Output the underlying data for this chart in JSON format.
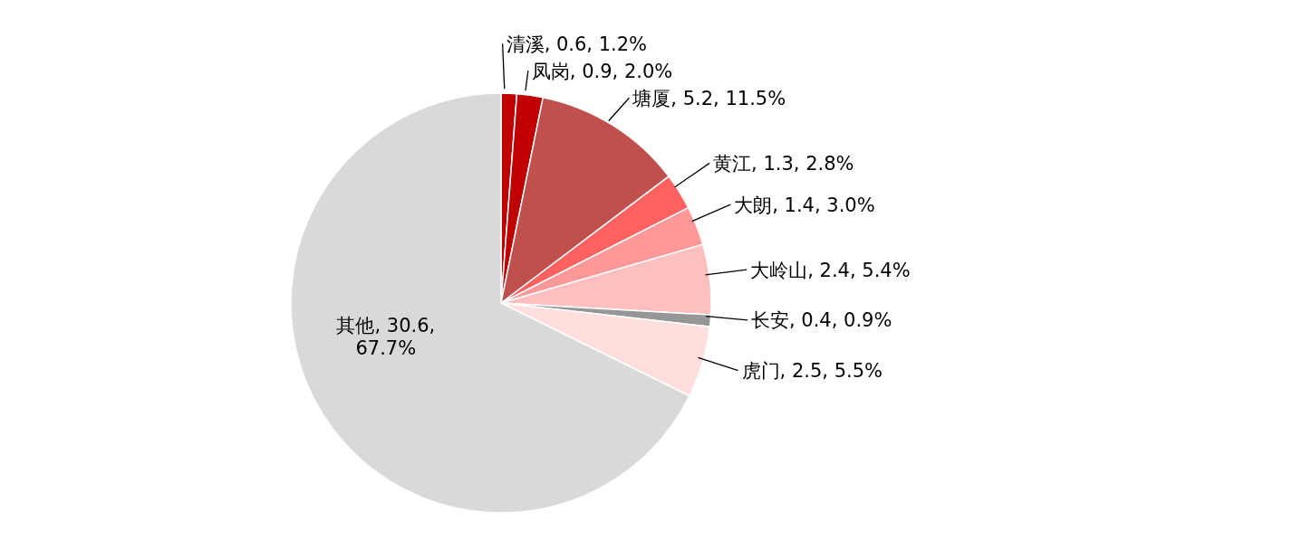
{
  "chart_data": {
    "type": "pie",
    "categories": [
      "清溪",
      "凤岗",
      "塘厦",
      "黄江",
      "大朗",
      "大岭山",
      "长安",
      "虎门",
      "其他"
    ],
    "values": [
      1.2,
      2.0,
      11.5,
      2.8,
      3.0,
      5.4,
      0.9,
      5.5,
      67.7
    ],
    "colors": [
      "#c00000",
      "#c00000",
      "#c0504d",
      "#ff6161",
      "#ff9999",
      "#ffbfbf",
      "#969696",
      "#ffdede",
      "#d9d9d9"
    ],
    "value_labels": [
      "0.6, 1.2%",
      "0.9, 2.0%",
      "5.2, 11.5%",
      "1.3, 2.8%",
      "1.4, 3.0%",
      "2.4, 5.4%",
      "0.4, 0.9%",
      "2.5, 5.5%",
      "30.6, 67.7%"
    ]
  }
}
